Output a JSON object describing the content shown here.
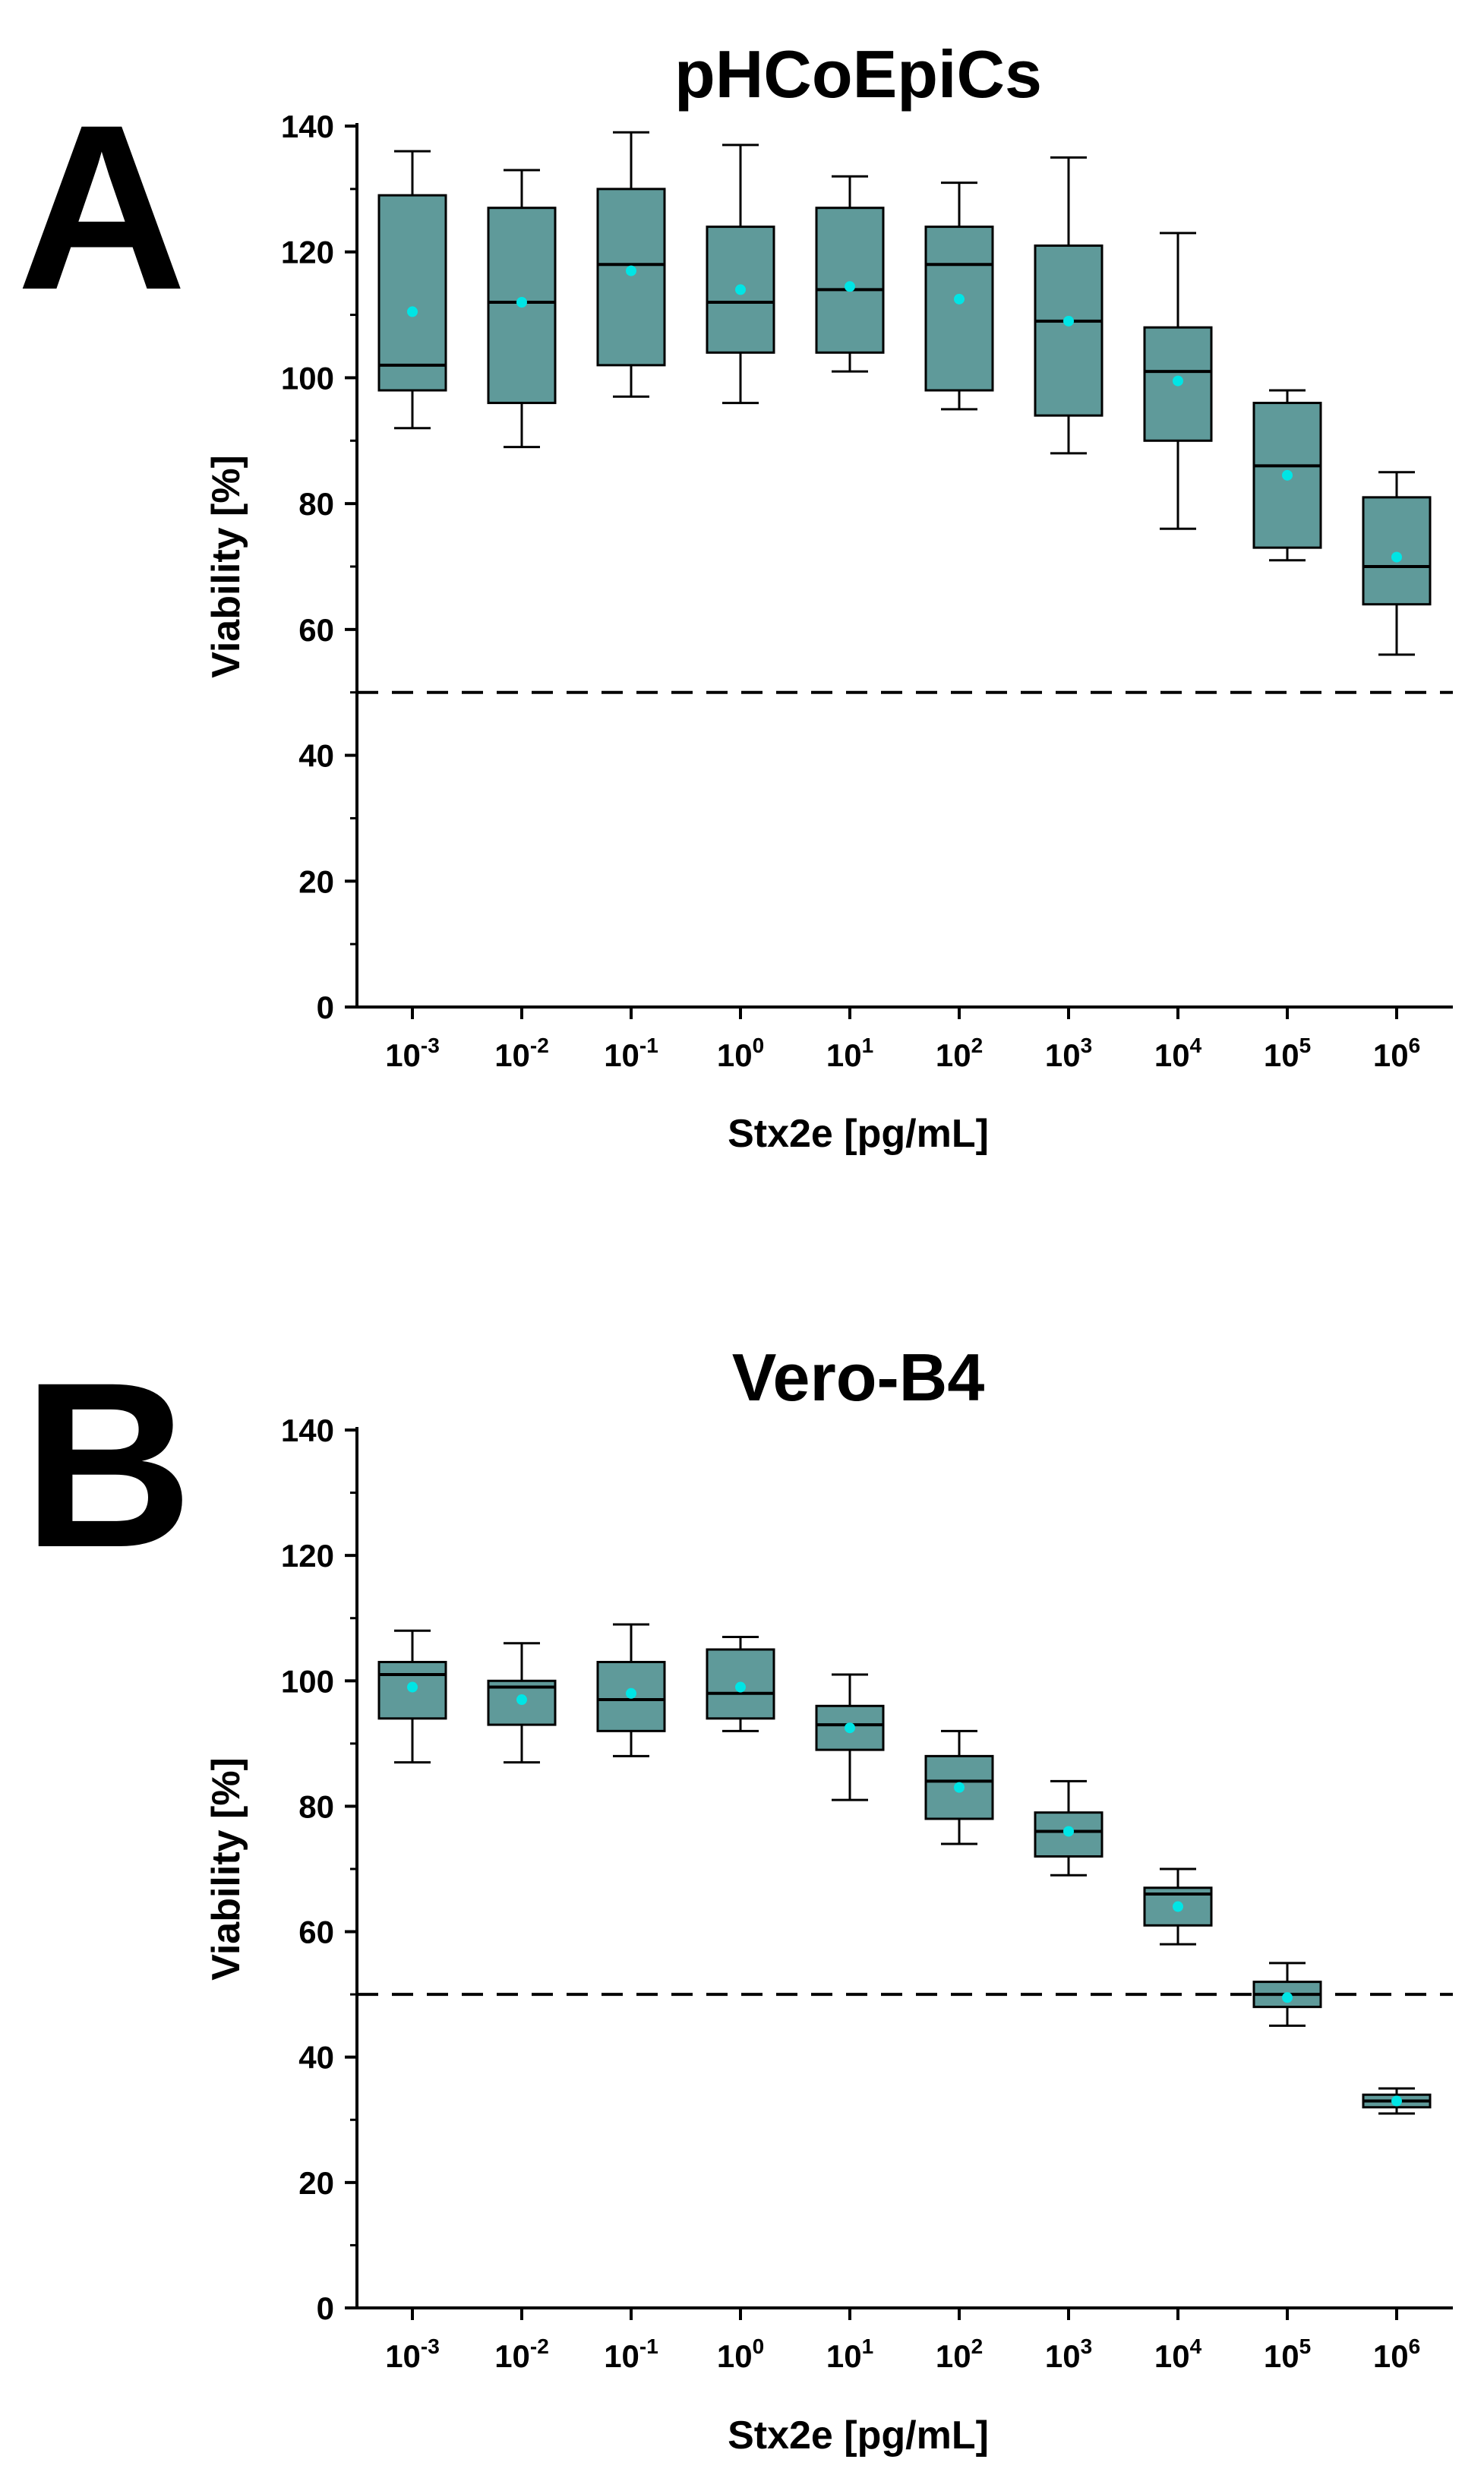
{
  "colors": {
    "box_fill": "#5f9a9a",
    "mean_marker": "#00e5e5",
    "line": "#000000"
  },
  "chart_data": [
    {
      "type": "box",
      "panel_label": "A",
      "title": "pHCoEpiCs",
      "xlabel": "Stx2e [pg/mL]",
      "ylabel": "Viability [%]",
      "ylim": [
        0,
        140
      ],
      "yticks": [
        "0",
        "20",
        "40",
        "60",
        "80",
        "100",
        "120",
        "140"
      ],
      "reference_line": 50,
      "categories": [
        {
          "base": "10",
          "exp": "-3"
        },
        {
          "base": "10",
          "exp": "-2"
        },
        {
          "base": "10",
          "exp": "-1"
        },
        {
          "base": "10",
          "exp": "0"
        },
        {
          "base": "10",
          "exp": "1"
        },
        {
          "base": "10",
          "exp": "2"
        },
        {
          "base": "10",
          "exp": "3"
        },
        {
          "base": "10",
          "exp": "4"
        },
        {
          "base": "10",
          "exp": "5"
        },
        {
          "base": "10",
          "exp": "6"
        }
      ],
      "boxes": [
        {
          "min": 92,
          "q1": 98,
          "median": 102,
          "q3": 129,
          "max": 136,
          "mean": 110.5
        },
        {
          "min": 89,
          "q1": 96,
          "median": 112,
          "q3": 127,
          "max": 133,
          "mean": 112
        },
        {
          "min": 97,
          "q1": 102,
          "median": 118,
          "q3": 130,
          "max": 139,
          "mean": 117
        },
        {
          "min": 96,
          "q1": 104,
          "median": 112,
          "q3": 124,
          "max": 137,
          "mean": 114
        },
        {
          "min": 101,
          "q1": 104,
          "median": 114,
          "q3": 127,
          "max": 132,
          "mean": 114.5
        },
        {
          "min": 95,
          "q1": 98,
          "median": 118,
          "q3": 124,
          "max": 131,
          "mean": 112.5
        },
        {
          "min": 88,
          "q1": 94,
          "median": 109,
          "q3": 121,
          "max": 135,
          "mean": 109
        },
        {
          "min": 76,
          "q1": 90,
          "median": 101,
          "q3": 108,
          "max": 123,
          "mean": 99.5
        },
        {
          "min": 71,
          "q1": 73,
          "median": 86,
          "q3": 96,
          "max": 98,
          "mean": 84.5
        },
        {
          "min": 56,
          "q1": 64,
          "median": 70,
          "q3": 81,
          "max": 85,
          "mean": 71.5
        }
      ]
    },
    {
      "type": "box",
      "panel_label": "B",
      "title": "Vero-B4",
      "xlabel": "Stx2e [pg/mL]",
      "ylabel": "Viability [%]",
      "ylim": [
        0,
        140
      ],
      "yticks": [
        "0",
        "20",
        "40",
        "60",
        "80",
        "100",
        "120",
        "140"
      ],
      "reference_line": 50,
      "categories": [
        {
          "base": "10",
          "exp": "-3"
        },
        {
          "base": "10",
          "exp": "-2"
        },
        {
          "base": "10",
          "exp": "-1"
        },
        {
          "base": "10",
          "exp": "0"
        },
        {
          "base": "10",
          "exp": "1"
        },
        {
          "base": "10",
          "exp": "2"
        },
        {
          "base": "10",
          "exp": "3"
        },
        {
          "base": "10",
          "exp": "4"
        },
        {
          "base": "10",
          "exp": "5"
        },
        {
          "base": "10",
          "exp": "6"
        }
      ],
      "boxes": [
        {
          "min": 87,
          "q1": 94,
          "median": 101,
          "q3": 103,
          "max": 108,
          "mean": 99
        },
        {
          "min": 87,
          "q1": 93,
          "median": 99,
          "q3": 100,
          "max": 106,
          "mean": 97
        },
        {
          "min": 88,
          "q1": 92,
          "median": 97,
          "q3": 103,
          "max": 109,
          "mean": 98
        },
        {
          "min": 92,
          "q1": 94,
          "median": 98,
          "q3": 105,
          "max": 107,
          "mean": 99
        },
        {
          "min": 81,
          "q1": 89,
          "median": 93,
          "q3": 96,
          "max": 101,
          "mean": 92.5
        },
        {
          "min": 74,
          "q1": 78,
          "median": 84,
          "q3": 88,
          "max": 92,
          "mean": 83
        },
        {
          "min": 69,
          "q1": 72,
          "median": 76,
          "q3": 79,
          "max": 84,
          "mean": 76
        },
        {
          "min": 58,
          "q1": 61,
          "median": 66,
          "q3": 67,
          "max": 70,
          "mean": 64
        },
        {
          "min": 45,
          "q1": 48,
          "median": 50,
          "q3": 52,
          "max": 55,
          "mean": 49.5
        },
        {
          "min": 31,
          "q1": 32,
          "median": 33,
          "q3": 34,
          "max": 35,
          "mean": 33
        }
      ]
    }
  ]
}
